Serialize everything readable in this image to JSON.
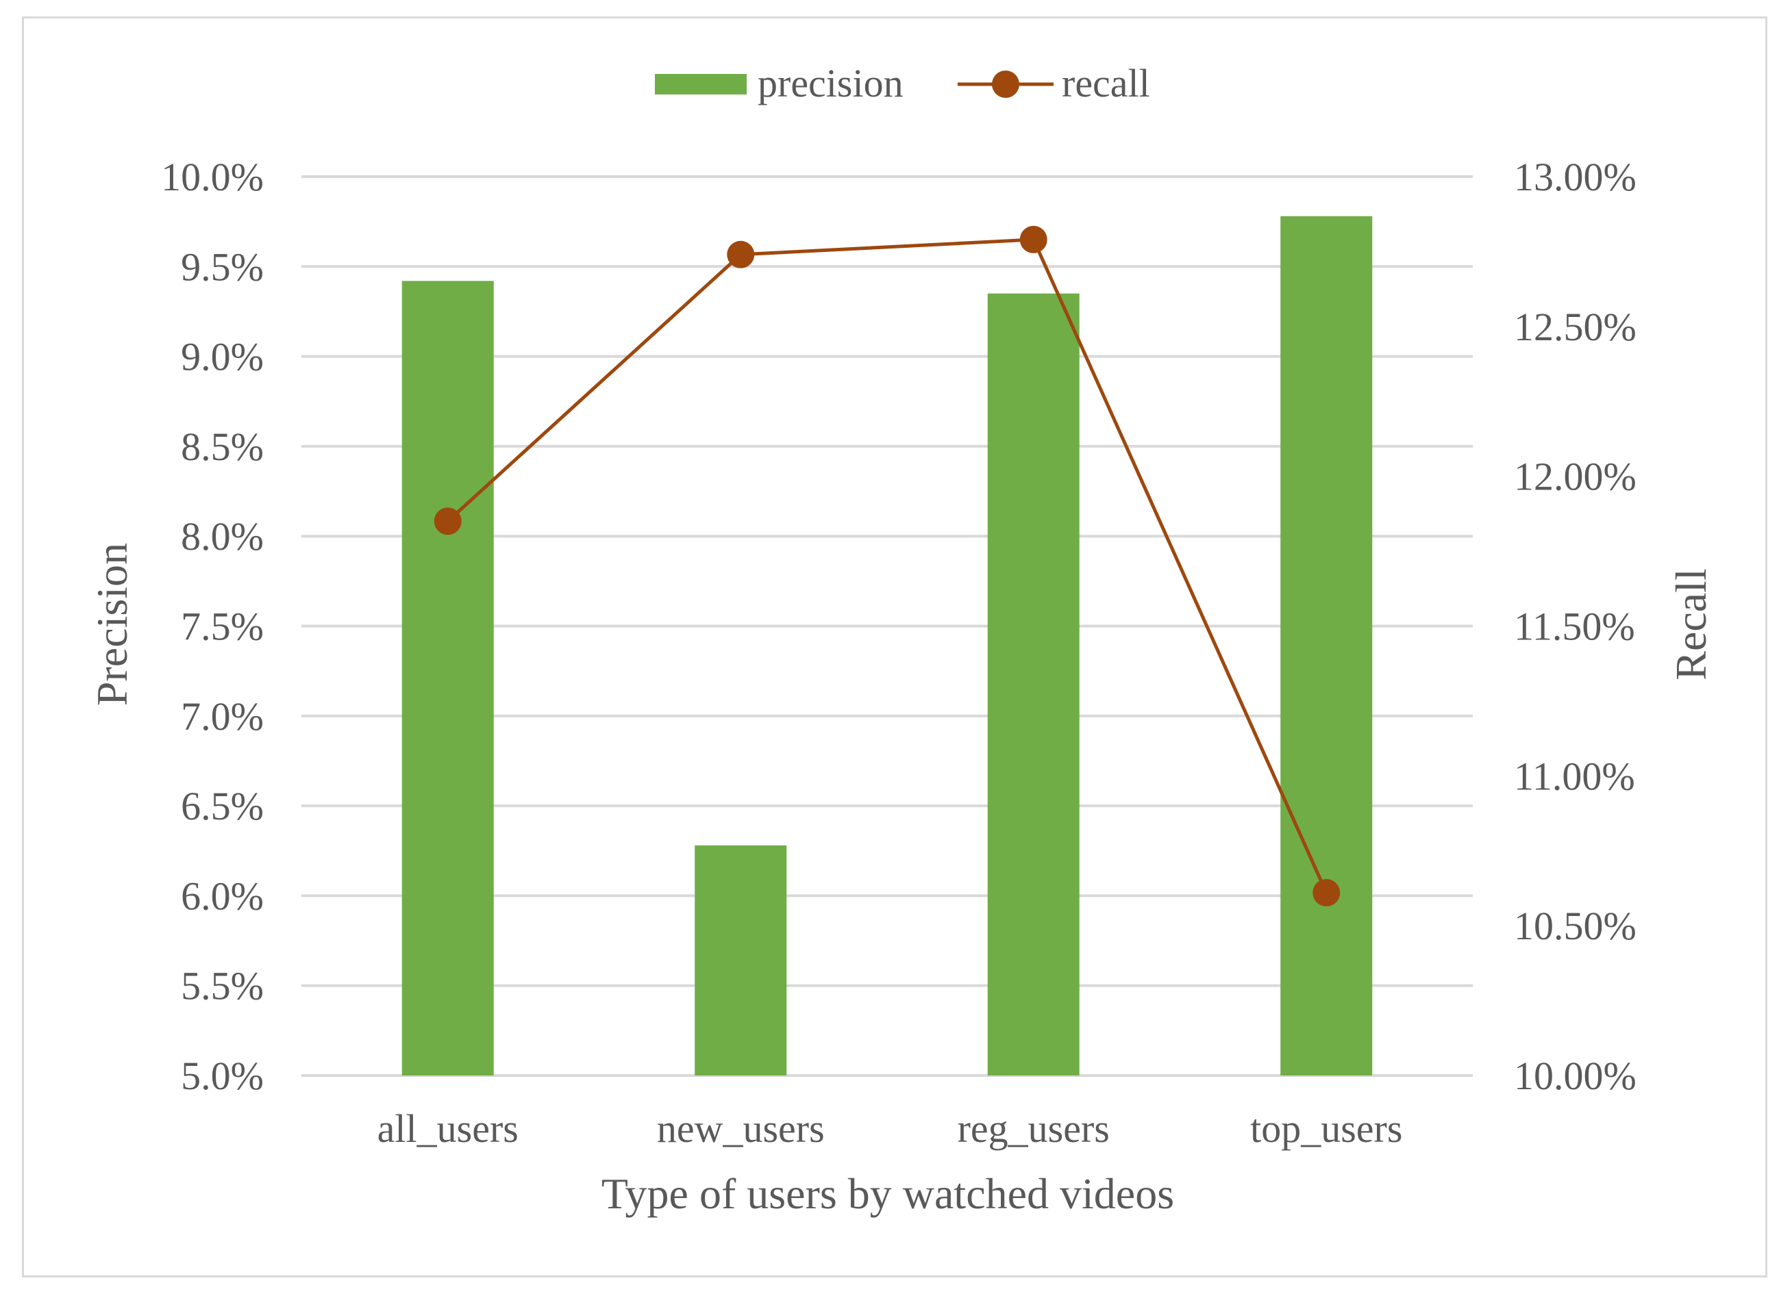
{
  "chart_data": {
    "type": "bar",
    "categories": [
      "all_users",
      "new_users",
      "reg_users",
      "top_users"
    ],
    "series": [
      {
        "name": "precision",
        "type": "bar",
        "axis": "left",
        "values": [
          9.42,
          6.28,
          9.35,
          9.78
        ],
        "color": "#70ad47"
      },
      {
        "name": "recall",
        "type": "line",
        "axis": "right",
        "values": [
          11.85,
          12.74,
          12.79,
          10.61
        ],
        "color": "#9e480e"
      }
    ],
    "xlabel": "Type of users by watched videos",
    "ylabel": "Precision",
    "y2label": "Recall",
    "ylim": [
      5.0,
      10.0
    ],
    "y2lim": [
      10.0,
      13.0
    ],
    "yticks": [
      "5.0%",
      "5.5%",
      "6.0%",
      "6.5%",
      "7.0%",
      "7.5%",
      "8.0%",
      "8.5%",
      "9.0%",
      "9.5%",
      "10.0%"
    ],
    "y2ticks": [
      "10.00%",
      "10.50%",
      "11.00%",
      "11.50%",
      "12.00%",
      "12.50%",
      "13.00%"
    ],
    "grid": true,
    "gridColor": "#d9d9d9",
    "legend": "top-center"
  }
}
